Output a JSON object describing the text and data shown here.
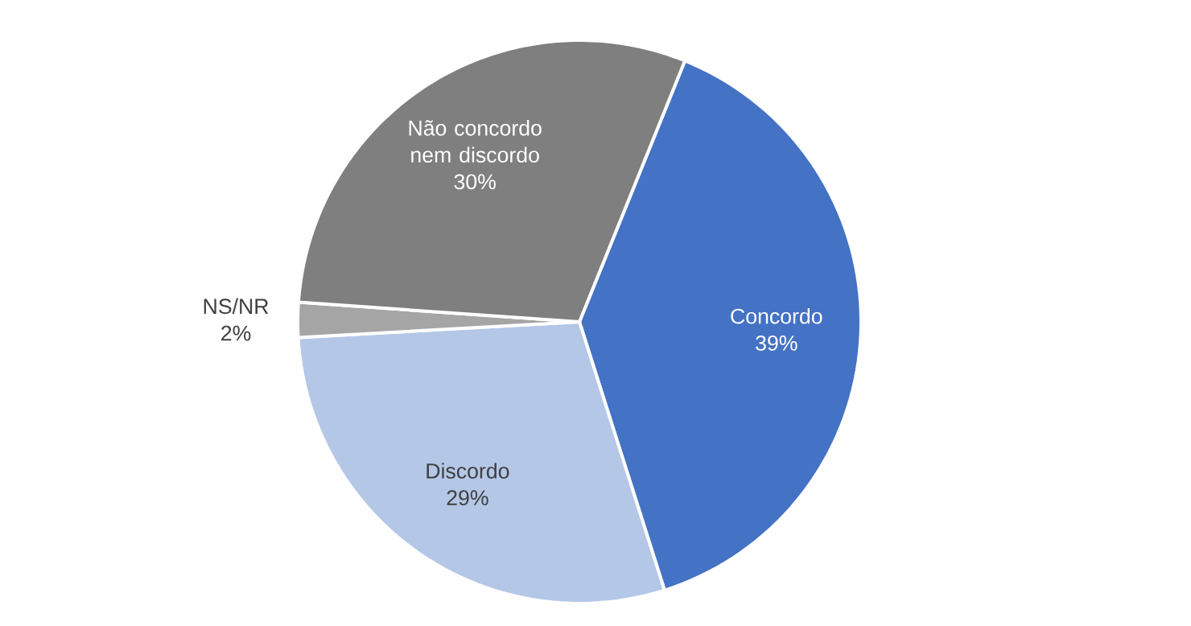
{
  "chart_data": {
    "type": "pie",
    "categories": [
      "Concordo",
      "Discordo",
      "NS/NR",
      "Não concordo nem discordo"
    ],
    "values": [
      39,
      29,
      2,
      30
    ],
    "value_labels": [
      "39%",
      "29%",
      "2%",
      "30%"
    ],
    "colors": [
      "#4472c4",
      "#b4c7e7",
      "#a5a5a5",
      "#7f7f7f"
    ]
  }
}
